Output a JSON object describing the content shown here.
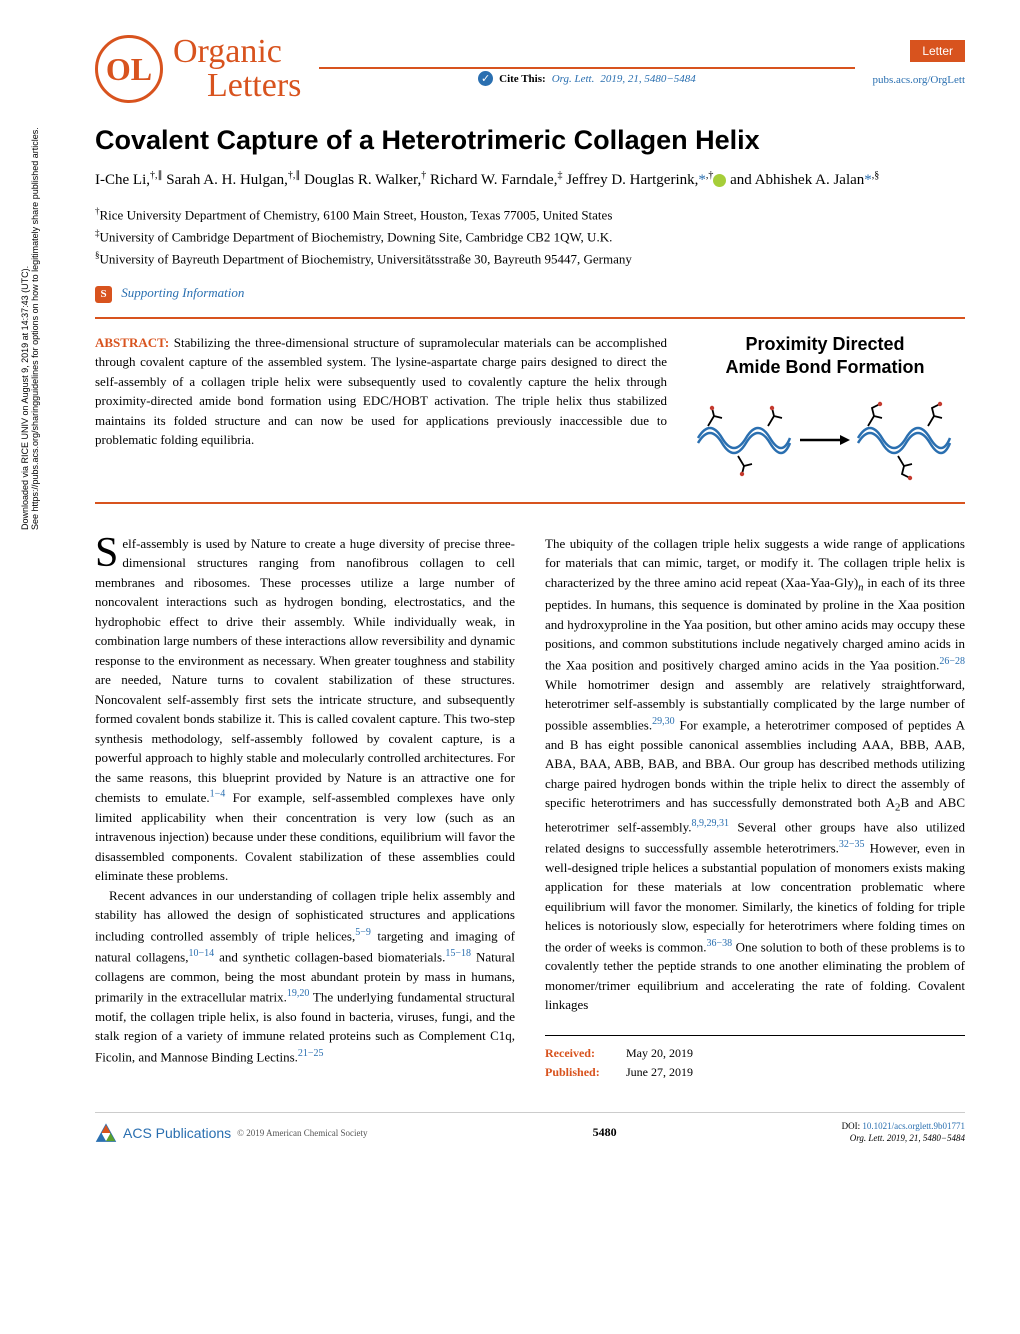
{
  "sidebar": {
    "line1": "Downloaded via RICE UNIV on August 9, 2019 at 14:37:43 (UTC).",
    "line2": "See https://pubs.acs.org/sharingguidelines for options on how to legitimately share published articles."
  },
  "header": {
    "logo_ol": "OL",
    "logo_organic": "Organic",
    "logo_letters": "Letters",
    "cite_prefix": "Cite This:",
    "cite_journal": "Org. Lett.",
    "cite_year_vol": "2019, 21, 5480−5484",
    "letter_badge": "Letter",
    "pubs_link": "pubs.acs.org/OrgLett"
  },
  "title": "Covalent Capture of a Heterotrimeric Collagen Helix",
  "authors_html": "I-Che Li,<sup>†,∥</sup> Sarah A. H. Hulgan,<sup>†,∥</sup> Douglas R. Walker,<sup>†</sup> Richard W. Farndale,<sup>‡</sup> Jeffrey D. Hartgerink,<span class='star'>*</span><sup>,†</sup><span class='orcid-icon'></span> and Abhishek A. Jalan<span class='star'>*</span><sup>,§</sup>",
  "affiliations": [
    "<sup>†</sup>Rice University Department of Chemistry, 6100 Main Street, Houston, Texas 77005, United States",
    "<sup>‡</sup>University of Cambridge Department of Biochemistry, Downing Site, Cambridge CB2 1QW, U.K.",
    "<sup>§</sup>University of Bayreuth Department of Biochemistry, Universitätsstraße 30, Bayreuth 95447, Germany"
  ],
  "supporting": "Supporting Information",
  "abstract": {
    "label": "ABSTRACT:",
    "text": "Stabilizing the three-dimensional structure of supramolecular materials can be accomplished through covalent capture of the assembled system. The lysine-aspartate charge pairs designed to direct the self-assembly of a collagen triple helix were subsequently used to covalently capture the helix through proximity-directed amide bond formation using EDC/HOBT activation. The triple helix thus stabilized maintains its folded structure and can now be used for applications previously inaccessible due to problematic folding equilibria.",
    "figure_title_line1": "Proximity Directed",
    "figure_title_line2": "Amide Bond Formation",
    "figure": {
      "helix_color": "#2a6fb0",
      "struct_color": "#000000",
      "red_color": "#c43a2e"
    }
  },
  "body": {
    "dropcap": "S",
    "col1_p1": "elf-assembly is used by Nature to create a huge diversity of precise three-dimensional structures ranging from nanofibrous collagen to cell membranes and ribosomes. These processes utilize a large number of noncovalent interactions such as hydrogen bonding, electrostatics, and the hydrophobic effect to drive their assembly. While individually weak, in combination large numbers of these interactions allow reversibility and dynamic response to the environment as necessary. When greater toughness and stability are needed, Nature turns to covalent stabilization of these structures. Noncovalent self-assembly first sets the intricate structure, and subsequently formed covalent bonds stabilize it. This is called covalent capture. This two-step synthesis methodology, self-assembly followed by covalent capture, is a powerful approach to highly stable and molecularly controlled architectures. For the same reasons, this blueprint provided by Nature is an attractive one for chemists to emulate.<span class='ref-link'>1−4</span> For example, self-assembled complexes have only limited applicability when their concentration is very low (such as an intravenous injection) because under these conditions, equilibrium will favor the disassembled components. Covalent stabilization of these assemblies could eliminate these problems.",
    "col1_p2": "Recent advances in our understanding of collagen triple helix assembly and stability has allowed the design of sophisticated structures and applications including controlled assembly of triple helices,<span class='ref-link'>5−9</span> targeting and imaging of natural collagens,<span class='ref-link'>10−14</span> and synthetic collagen-based biomaterials.<span class='ref-link'>15−18</span> Natural collagens are common, being the most abundant protein by mass in humans, primarily in the extracellular matrix.<span class='ref-link'>19,20</span> The underlying fundamental structural motif, the collagen triple helix, is also found in bacteria, viruses, fungi, and the stalk region of a variety of immune related proteins such as Complement C1q, Ficolin, and Mannose Binding Lectins.<span class='ref-link'>21−25</span>",
    "col2_p1": "The ubiquity of the collagen triple helix suggests a wide range of applications for materials that can mimic, target, or modify it. The collagen triple helix is characterized by the three amino acid repeat (Xaa-Yaa-Gly)<sub><i>n</i></sub> in each of its three peptides. In humans, this sequence is dominated by proline in the Xaa position and hydroxyproline in the Yaa position, but other amino acids may occupy these positions, and common substitutions include negatively charged amino acids in the Xaa position and positively charged amino acids in the Yaa position.<span class='ref-link'>26−28</span> While homotrimer design and assembly are relatively straightforward, heterotrimer self-assembly is substantially complicated by the large number of possible assemblies.<span class='ref-link'>29,30</span> For example, a heterotrimer composed of peptides A and B has eight possible canonical assemblies including AAA, BBB, AAB, ABA, BAA, ABB, BAB, and BBA. Our group has described methods utilizing charge paired hydrogen bonds within the triple helix to direct the assembly of specific heterotrimers and has successfully demonstrated both A<sub>2</sub>B and ABC heterotrimer self-assembly.<span class='ref-link'>8,9,29,31</span> Several other groups have also utilized related designs to successfully assemble heterotrimers.<span class='ref-link'>32−35</span> However, even in well-designed triple helices a substantial population of monomers exists making application for these materials at low concentration problematic where equilibrium will favor the monomer. Similarly, the kinetics of folding for triple helices is notoriously slow, especially for heterotrimers where folding times on the order of weeks is common.<span class='ref-link'>36−38</span> One solution to both of these problems is to covalently tether the peptide strands to one another eliminating the problem of monomer/trimer equilibrium and accelerating the rate of folding. Covalent linkages"
  },
  "received": {
    "received_label": "Received:",
    "received_date": "May 20, 2019",
    "published_label": "Published:",
    "published_date": "June 27, 2019"
  },
  "footer": {
    "acs_text": "ACS Publications",
    "copyright": "© 2019 American Chemical Society",
    "page_num": "5480",
    "doi_label": "DOI:",
    "doi": "10.1021/acs.orglett.9b01771",
    "journal_ref": "Org. Lett. 2019, 21, 5480−5484"
  },
  "colors": {
    "brand": "#d8531e",
    "link": "#2a6fb0",
    "text": "#000000",
    "orcid": "#a6ce39"
  }
}
